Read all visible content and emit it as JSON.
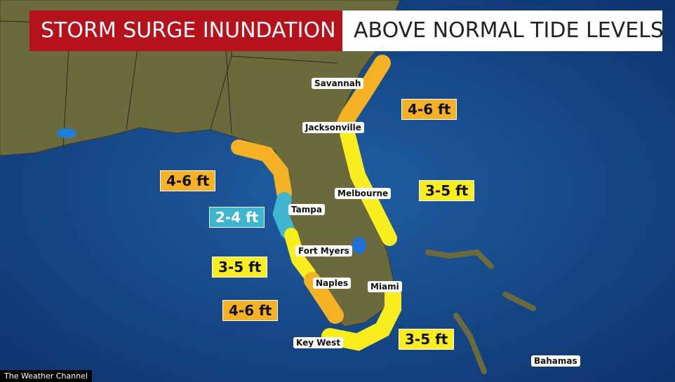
{
  "header": {
    "left": "STORM SURGE INUNDATION",
    "right": "ABOVE NORMAL TIDE LEVELS"
  },
  "zones": [
    "4-6 ft",
    "4-6 ft",
    "2-4 ft",
    "3-5 ft",
    "3-5 ft",
    "4-6 ft",
    "3-5 ft"
  ],
  "cities": [
    "Savannah",
    "Jacksonville",
    "Melbourne",
    "Tampa",
    "Fort Myers",
    "Naples",
    "Miami",
    "Key West",
    "Bahamas"
  ],
  "credit": "The Weather Channel"
}
